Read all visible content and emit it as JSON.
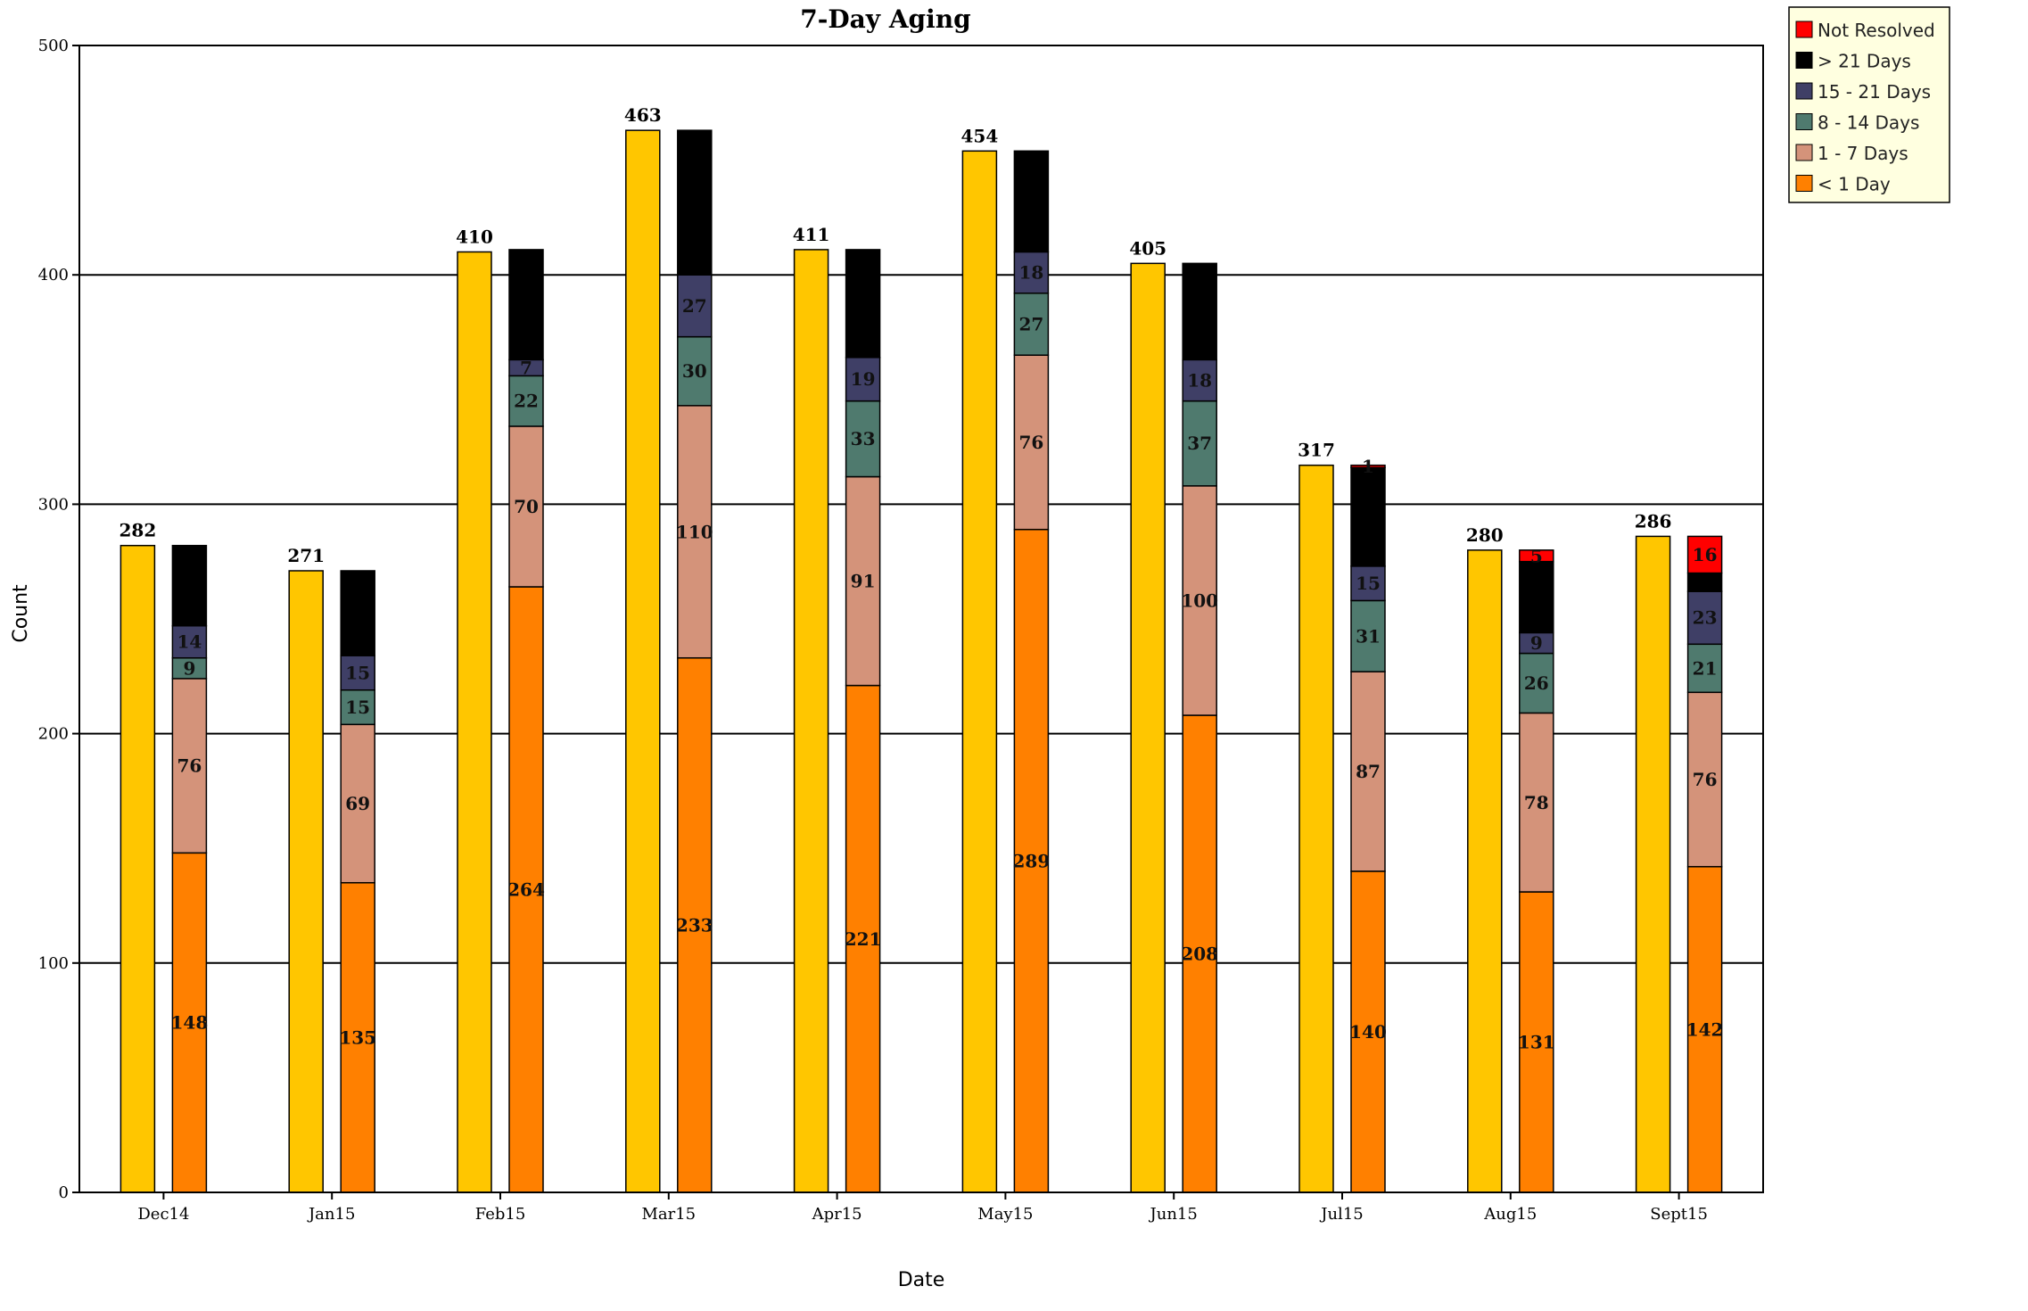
{
  "chart_data": {
    "type": "bar",
    "title": "7-Day Aging",
    "xlabel": "Date",
    "ylabel": "Count",
    "ylim": [
      0,
      500
    ],
    "yticks": [
      0,
      100,
      200,
      300,
      400,
      500
    ],
    "grid": true,
    "legend_position": "top-right outside plot",
    "categories": [
      "Dec14",
      "Jan15",
      "Feb15",
      "Mar15",
      "Apr15",
      "May15",
      "Jun15",
      "Jul15",
      "Aug15",
      "Sept15"
    ],
    "totals": {
      "values": [
        282,
        271,
        410,
        463,
        411,
        454,
        405,
        317,
        280,
        286
      ],
      "color": "#FFC600"
    },
    "series": [
      {
        "name": "< 1 Day",
        "color": "#FF8000",
        "values": [
          148,
          135,
          264,
          233,
          221,
          289,
          208,
          140,
          131,
          142
        ]
      },
      {
        "name": "1 - 7 Days",
        "color": "#D4937A",
        "values": [
          76,
          69,
          70,
          110,
          91,
          76,
          100,
          87,
          78,
          76
        ]
      },
      {
        "name": "8 - 14 Days",
        "color": "#4F7A6E",
        "values": [
          9,
          15,
          22,
          30,
          33,
          27,
          37,
          31,
          26,
          21
        ]
      },
      {
        "name": "15 - 21 Days",
        "color": "#3F3F66",
        "values": [
          14,
          15,
          7,
          27,
          19,
          18,
          18,
          15,
          9,
          23
        ]
      },
      {
        "name": "> 21 Days",
        "color": "#000000",
        "values": [
          35,
          37,
          48,
          63,
          47,
          44,
          42,
          43,
          31,
          8
        ]
      },
      {
        "name": "Not Resolved",
        "color": "#FF0000",
        "values": [
          0,
          0,
          0,
          0,
          0,
          0,
          0,
          1,
          5,
          16
        ]
      }
    ],
    "legend_order": [
      "Not Resolved",
      "> 21 Days",
      "15 - 21 Days",
      "8 - 14 Days",
      "1 - 7 Days",
      "< 1 Day"
    ],
    "segment_labels_shown": [
      "< 1 Day",
      "1 - 7 Days",
      "8 - 14 Days",
      "15 - 21 Days",
      "Not Resolved"
    ]
  }
}
